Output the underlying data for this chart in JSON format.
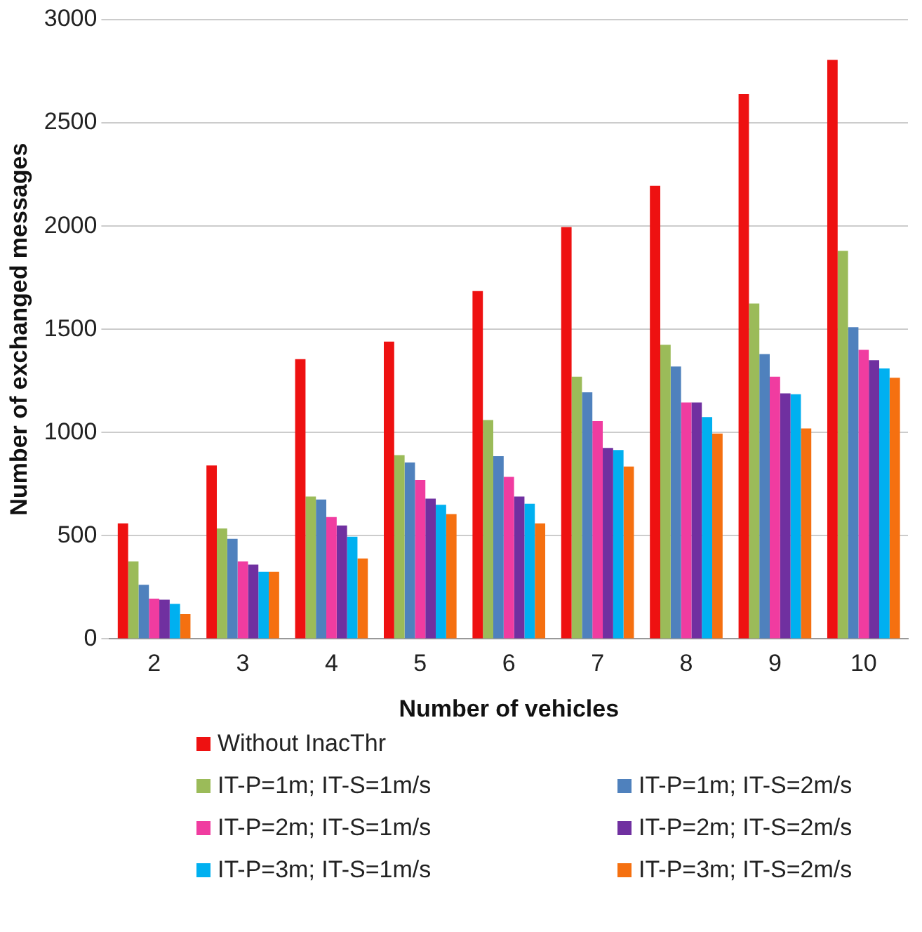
{
  "chart_data": {
    "type": "bar",
    "xlabel": "Number of vehicles",
    "ylabel": "Number of exchanged messages",
    "categories": [
      "2",
      "3",
      "4",
      "5",
      "6",
      "7",
      "8",
      "9",
      "10"
    ],
    "series": [
      {
        "name": "Without InacThr",
        "color": "#ee1111",
        "values": [
          560,
          840,
          1355,
          1440,
          1685,
          1995,
          2195,
          2640,
          2805
        ]
      },
      {
        "name": "IT-P=1m; IT-S=1m/s",
        "color": "#9bbb59",
        "values": [
          375,
          535,
          690,
          890,
          1060,
          1270,
          1425,
          1625,
          1880
        ]
      },
      {
        "name": "IT-P=1m; IT-S=2m/s",
        "color": "#4f81bd",
        "values": [
          262,
          485,
          675,
          855,
          885,
          1195,
          1320,
          1380,
          1510
        ]
      },
      {
        "name": "IT-P=2m; IT-S=1m/s",
        "color": "#f03ca0",
        "values": [
          195,
          375,
          590,
          770,
          785,
          1055,
          1145,
          1270,
          1400
        ]
      },
      {
        "name": "IT-P=2m; IT-S=2m/s",
        "color": "#7030a0",
        "values": [
          190,
          360,
          550,
          680,
          690,
          925,
          1145,
          1190,
          1350
        ]
      },
      {
        "name": "IT-P=3m; IT-S=1m/s",
        "color": "#00b0f0",
        "values": [
          170,
          325,
          495,
          650,
          655,
          915,
          1075,
          1185,
          1310
        ]
      },
      {
        "name": "IT-P=3m; IT-S=2m/s",
        "color": "#f57010",
        "values": [
          120,
          325,
          390,
          605,
          560,
          835,
          995,
          1020,
          1265
        ]
      }
    ],
    "ylim": [
      0,
      3000
    ],
    "yticks": [
      0,
      500,
      1000,
      1500,
      2000,
      2500,
      3000
    ],
    "grid": "y",
    "legend": "bottom"
  }
}
